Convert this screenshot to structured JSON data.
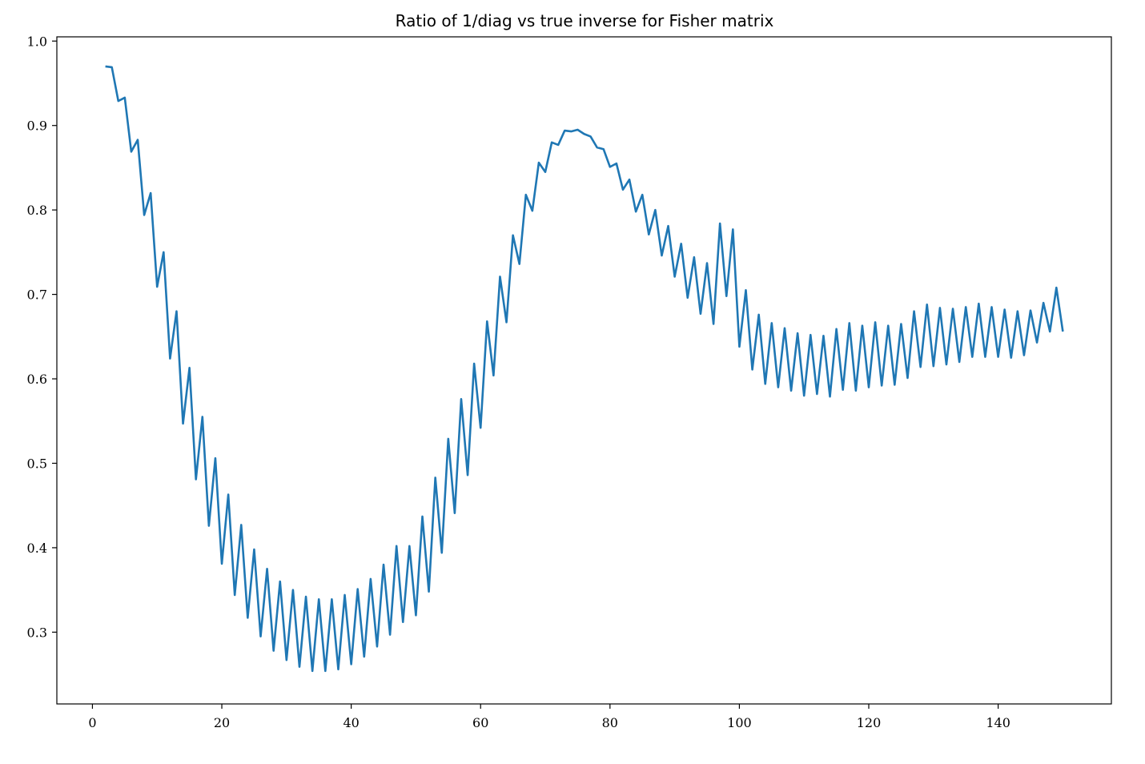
{
  "chart_data": {
    "type": "line",
    "title": "Ratio of 1/diag vs true inverse for Fisher matrix",
    "xlabel": "",
    "ylabel": "",
    "xlim": [
      -5.5,
      157.5
    ],
    "ylim": [
      0.215,
      1.005
    ],
    "xticks": [
      0,
      20,
      40,
      60,
      80,
      100,
      120,
      140
    ],
    "yticks": [
      0.3,
      0.4,
      0.5,
      0.6,
      0.7,
      0.8,
      0.9,
      1.0
    ],
    "xtick_labels": [
      "0",
      "20",
      "40",
      "60",
      "80",
      "100",
      "120",
      "140"
    ],
    "ytick_labels": [
      "0.3",
      "0.4",
      "0.5",
      "0.6",
      "0.7",
      "0.8",
      "0.9",
      "1.0"
    ],
    "grid": false,
    "line_color": "#1f77b4",
    "series": [
      {
        "x": [
          2,
          3,
          4,
          5,
          6,
          7,
          8,
          9,
          10,
          11,
          12,
          13,
          14,
          15,
          16,
          17,
          18,
          19,
          20,
          21,
          22,
          23,
          24,
          25,
          26,
          27,
          28,
          29,
          30,
          31,
          32,
          33,
          34,
          35,
          36,
          37,
          38,
          39,
          40,
          41,
          42,
          43,
          44,
          45,
          46,
          47,
          48,
          49,
          50,
          51,
          52,
          53,
          54,
          55,
          56,
          57,
          58,
          59,
          60,
          61,
          62,
          63,
          64,
          65,
          66,
          67,
          68,
          69,
          70,
          71,
          72,
          73,
          74,
          75,
          76,
          77,
          78,
          79,
          80,
          81,
          82,
          83,
          84,
          85,
          86,
          87,
          88,
          89,
          90,
          91,
          92,
          93,
          94,
          95,
          96,
          97,
          98,
          99,
          100,
          101,
          102,
          103,
          104,
          105,
          106,
          107,
          108,
          109,
          110,
          111,
          112,
          113,
          114,
          115,
          116,
          117,
          118,
          119,
          120,
          121,
          122,
          123,
          124,
          125,
          126,
          127,
          128,
          129,
          130,
          131,
          132,
          133,
          134,
          135,
          136,
          137,
          138,
          139,
          140,
          141,
          142,
          143,
          144,
          145,
          146,
          147,
          148,
          149,
          150
        ],
        "values": [
          0.97,
          0.969,
          0.929,
          0.933,
          0.869,
          0.883,
          0.794,
          0.82,
          0.709,
          0.75,
          0.624,
          0.68,
          0.547,
          0.613,
          0.481,
          0.555,
          0.426,
          0.506,
          0.381,
          0.463,
          0.344,
          0.427,
          0.317,
          0.398,
          0.295,
          0.375,
          0.278,
          0.36,
          0.267,
          0.35,
          0.259,
          0.342,
          0.254,
          0.339,
          0.254,
          0.339,
          0.256,
          0.344,
          0.262,
          0.351,
          0.271,
          0.363,
          0.283,
          0.38,
          0.297,
          0.402,
          0.312,
          0.402,
          0.32,
          0.437,
          0.348,
          0.483,
          0.394,
          0.529,
          0.441,
          0.576,
          0.486,
          0.618,
          0.542,
          0.668,
          0.604,
          0.721,
          0.667,
          0.77,
          0.736,
          0.818,
          0.799,
          0.856,
          0.845,
          0.88,
          0.877,
          0.894,
          0.893,
          0.895,
          0.89,
          0.887,
          0.874,
          0.872,
          0.851,
          0.855,
          0.824,
          0.836,
          0.798,
          0.818,
          0.771,
          0.8,
          0.746,
          0.781,
          0.721,
          0.76,
          0.696,
          0.744,
          0.677,
          0.737,
          0.665,
          0.784,
          0.698,
          0.777,
          0.638,
          0.705,
          0.611,
          0.676,
          0.594,
          0.666,
          0.59,
          0.66,
          0.586,
          0.654,
          0.58,
          0.652,
          0.582,
          0.651,
          0.579,
          0.659,
          0.587,
          0.666,
          0.586,
          0.663,
          0.59,
          0.667,
          0.592,
          0.663,
          0.593,
          0.665,
          0.601,
          0.68,
          0.614,
          0.688,
          0.615,
          0.684,
          0.617,
          0.683,
          0.62,
          0.685,
          0.626,
          0.689,
          0.626,
          0.685,
          0.626,
          0.682,
          0.625,
          0.68,
          0.628,
          0.681,
          0.643,
          0.69,
          0.656,
          0.708,
          0.656
        ]
      }
    ]
  }
}
